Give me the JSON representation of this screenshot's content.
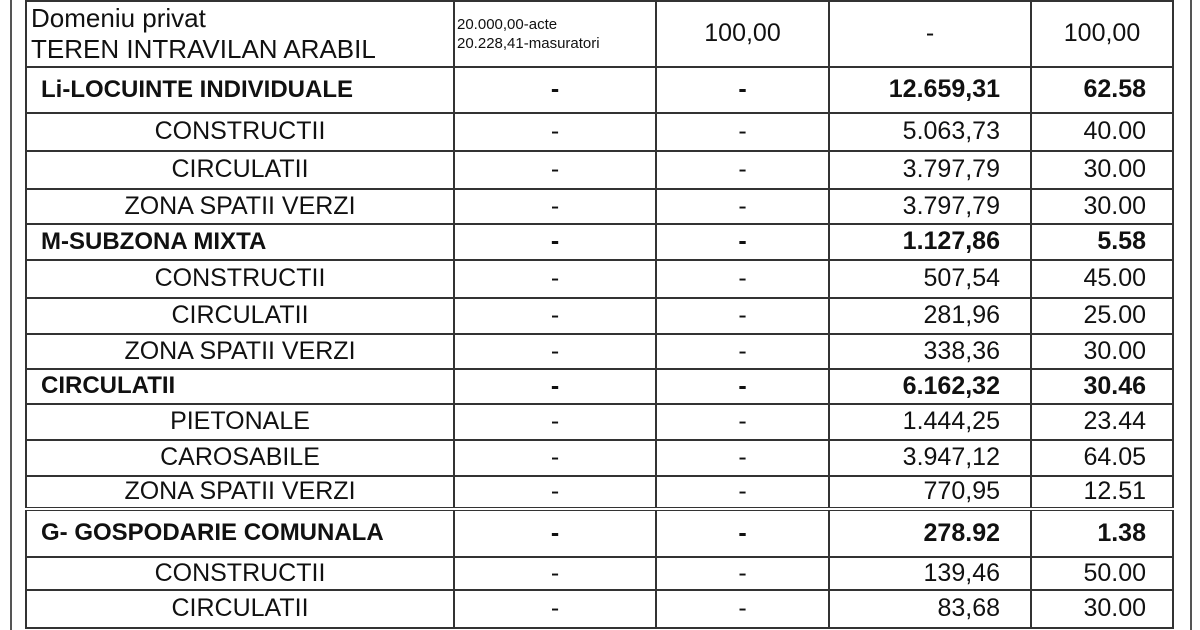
{
  "first_row": {
    "name_line1": "Domeniu privat",
    "name_line2": "TEREN INTRAVILAN ARABIL",
    "area_line1": "20.000,00-acte",
    "area_line2": "20.228,41-masuratori",
    "col3": "100,00",
    "col4": "-",
    "col5": "100,00"
  },
  "rows": [
    {
      "name": "Li-LOCUINTE INDIVIDUALE",
      "c2": "-",
      "c3": "-",
      "c4": "12.659,31",
      "c5": "62.58",
      "bold": true
    },
    {
      "name": "CONSTRUCTII",
      "c2": "-",
      "c3": "-",
      "c4": "5.063,73",
      "c5": "40.00"
    },
    {
      "name": "CIRCULATII",
      "c2": "-",
      "c3": "-",
      "c4": "3.797,79",
      "c5": "30.00"
    },
    {
      "name": "ZONA SPATII VERZI",
      "c2": "-",
      "c3": "-",
      "c4": "3.797,79",
      "c5": "30.00"
    },
    {
      "name": "M-SUBZONA MIXTA",
      "c2": "-",
      "c3": "-",
      "c4": "1.127,86",
      "c5": "5.58",
      "bold": true
    },
    {
      "name": "CONSTRUCTII",
      "c2": "-",
      "c3": "-",
      "c4": "507,54",
      "c5": "45.00"
    },
    {
      "name": "CIRCULATII",
      "c2": "-",
      "c3": "-",
      "c4": "281,96",
      "c5": "25.00"
    },
    {
      "name": "ZONA SPATII VERZI",
      "c2": "-",
      "c3": "-",
      "c4": "338,36",
      "c5": "30.00"
    },
    {
      "name": "CIRCULATII",
      "c2": "-",
      "c3": "-",
      "c4": "6.162,32",
      "c5": "30.46",
      "bold": true
    },
    {
      "name": "PIETONALE",
      "c2": "-",
      "c3": "-",
      "c4": "1.444,25",
      "c5": "23.44"
    },
    {
      "name": "CAROSABILE",
      "c2": "-",
      "c3": "-",
      "c4": "3.947,12",
      "c5": "64.05"
    },
    {
      "name": "ZONA SPATII VERZI",
      "c2": "-",
      "c3": "-",
      "c4": "770,95",
      "c5": "12.51"
    },
    {
      "name": "G- GOSPODARIE COMUNALA",
      "c2": "-",
      "c3": "-",
      "c4": "278.92",
      "c5": "1.38",
      "bold": true
    },
    {
      "name": "CONSTRUCTII",
      "c2": "-",
      "c3": "-",
      "c4": "139,46",
      "c5": "50.00"
    },
    {
      "name": "CIRCULATII",
      "c2": "-",
      "c3": "-",
      "c4": "83,68",
      "c5": "30.00"
    }
  ]
}
